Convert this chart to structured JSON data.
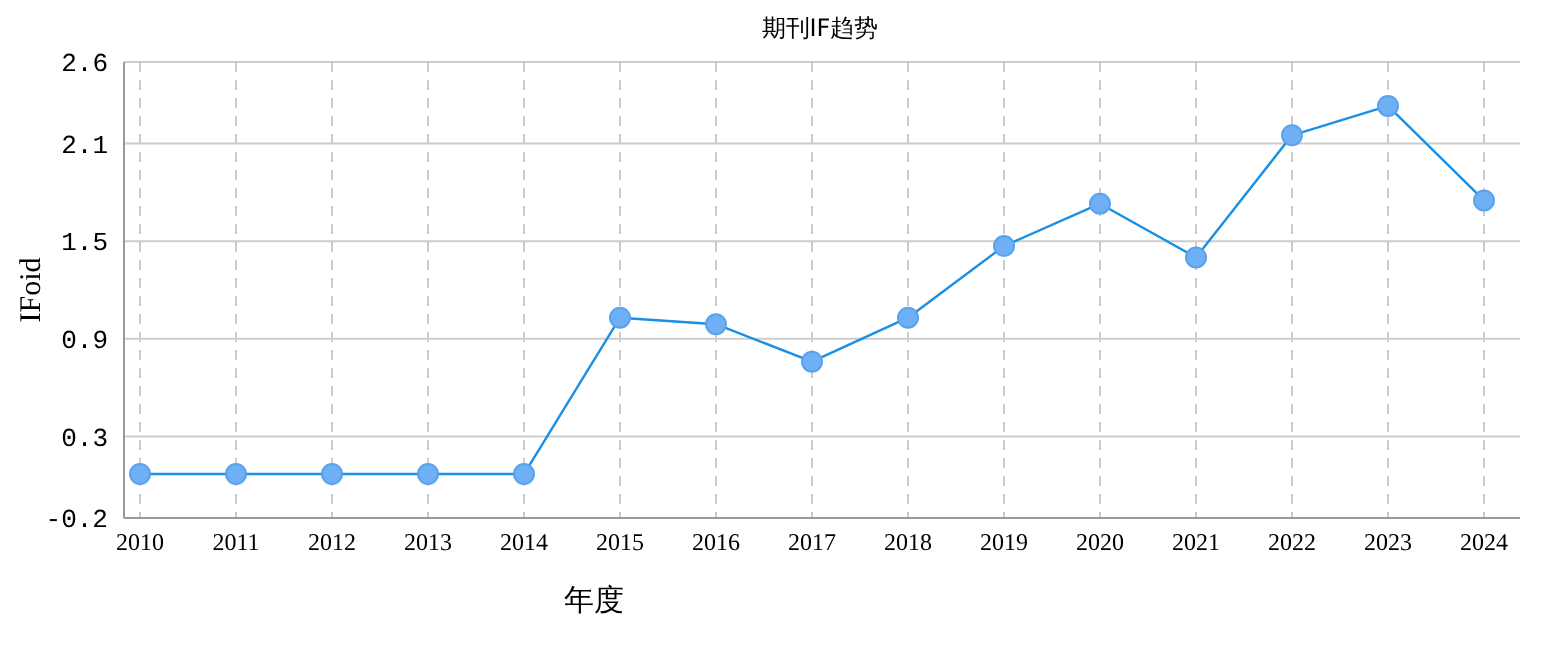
{
  "chart_data": {
    "type": "line",
    "title": "期刊IF趋势",
    "xlabel": "年度",
    "ylabel": "IFoid",
    "categories": [
      "2010",
      "2011",
      "2012",
      "2013",
      "2014",
      "2015",
      "2016",
      "2017",
      "2018",
      "2019",
      "2020",
      "2021",
      "2022",
      "2023",
      "2024"
    ],
    "series": [
      {
        "color": "#1a8fe3",
        "values": [
          0.07,
          0.07,
          0.07,
          0.07,
          0.07,
          1.03,
          0.99,
          0.76,
          1.03,
          1.47,
          1.73,
          1.4,
          2.15,
          2.33,
          1.75
        ]
      }
    ],
    "ylim": [
      -0.2,
      2.6
    ],
    "yticks": [
      -0.2,
      0.3,
      0.9,
      1.5,
      2.1,
      2.6
    ],
    "grid": true,
    "marker": "circle",
    "line_style": "solid"
  }
}
